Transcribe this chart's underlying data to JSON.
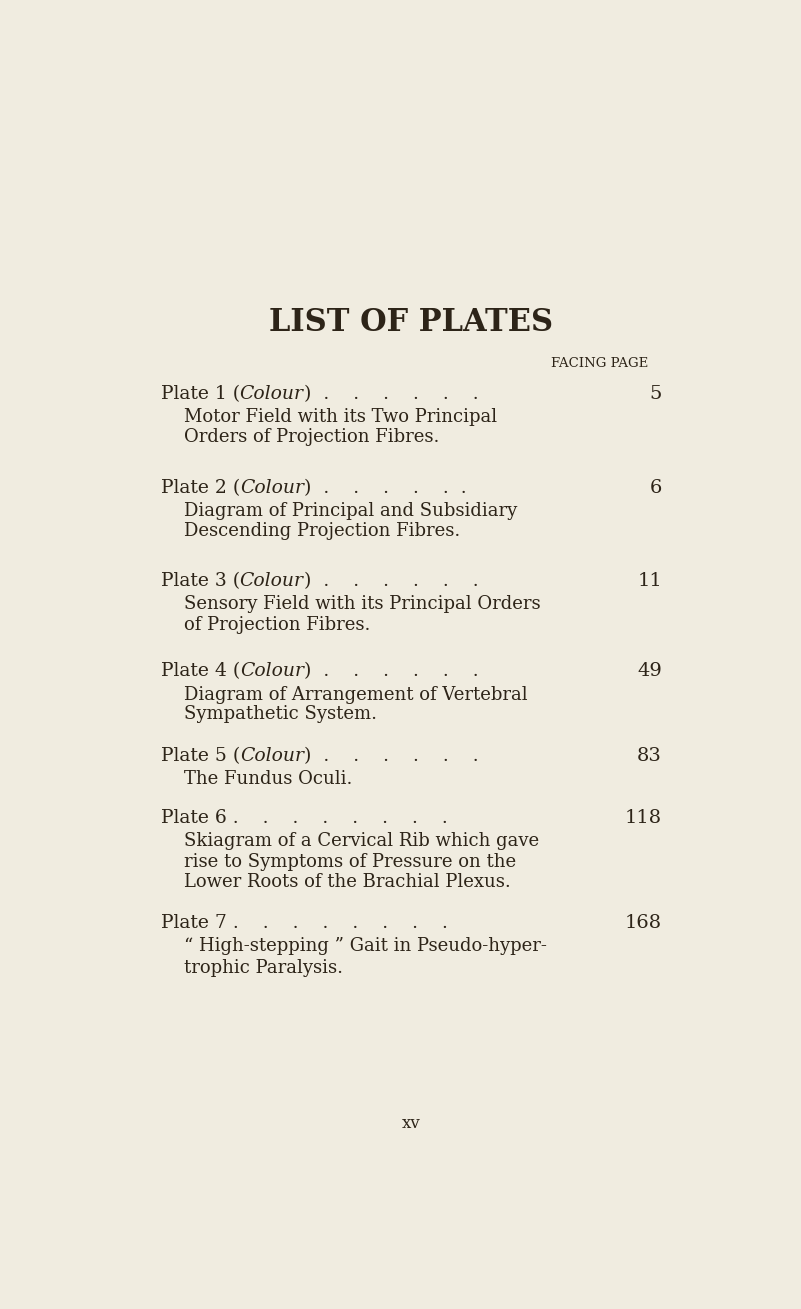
{
  "bg_color": "#f0ece0",
  "text_color": "#2d2418",
  "title": "LIST OF PLATES",
  "facing_page_label": "FACING PAGE",
  "entries": [
    {
      "plate_label": "Plate 1 (",
      "plate_italic": "Colour",
      "plate_suffix": ")  .    .    .    .    .    .",
      "page_num": "5",
      "desc_lines": [
        "Motor Field with its Two Principal",
        "Orders of Projection Fibres."
      ]
    },
    {
      "plate_label": "Plate 2 (",
      "plate_italic": "Colour",
      "plate_suffix": ")  .    .    .    .    .  .",
      "page_num": "6",
      "desc_lines": [
        "Diagram of Principal and Subsidiary",
        "Descending Projection Fibres."
      ]
    },
    {
      "plate_label": "Plate 3 (",
      "plate_italic": "Colour",
      "plate_suffix": ")  .    .    .    .    .    .",
      "page_num": "11",
      "desc_lines": [
        "Sensory Field with its Principal Orders",
        "of Projection Fibres."
      ]
    },
    {
      "plate_label": "Plate 4 (",
      "plate_italic": "Colour",
      "plate_suffix": ")  .    .    .    .    .    .",
      "page_num": "49",
      "desc_lines": [
        "Diagram of Arrangement of Vertebral",
        "Sympathetic System."
      ]
    },
    {
      "plate_label": "Plate 5 (",
      "plate_italic": "Colour",
      "plate_suffix": ")  .    .    .    .    .    .",
      "page_num": "83",
      "desc_lines": [
        "The Fundus Oculi."
      ]
    },
    {
      "plate_label": "Plate 6 .    .    .    .    .    .    .    .",
      "plate_italic": null,
      "plate_suffix": null,
      "page_num": "118",
      "desc_lines": [
        "Skiagram of a Cervical Rib which gave",
        "rise to Symptoms of Pressure on the",
        "Lower Roots of the Brachial Plexus."
      ]
    },
    {
      "plate_label": "Plate 7 .    .    .    .    .    .    .    .",
      "plate_italic": null,
      "plate_suffix": null,
      "page_num": "168",
      "desc_lines": [
        "“ High-stepping ” Gait in Pseudo-hyper-",
        "trophic Paralysis."
      ]
    }
  ],
  "footer": "xv",
  "title_fontsize": 22,
  "facing_fontsize": 9.5,
  "plate_fontsize": 13.5,
  "desc_fontsize": 13,
  "page_num_fontsize": 14,
  "footer_fontsize": 12
}
